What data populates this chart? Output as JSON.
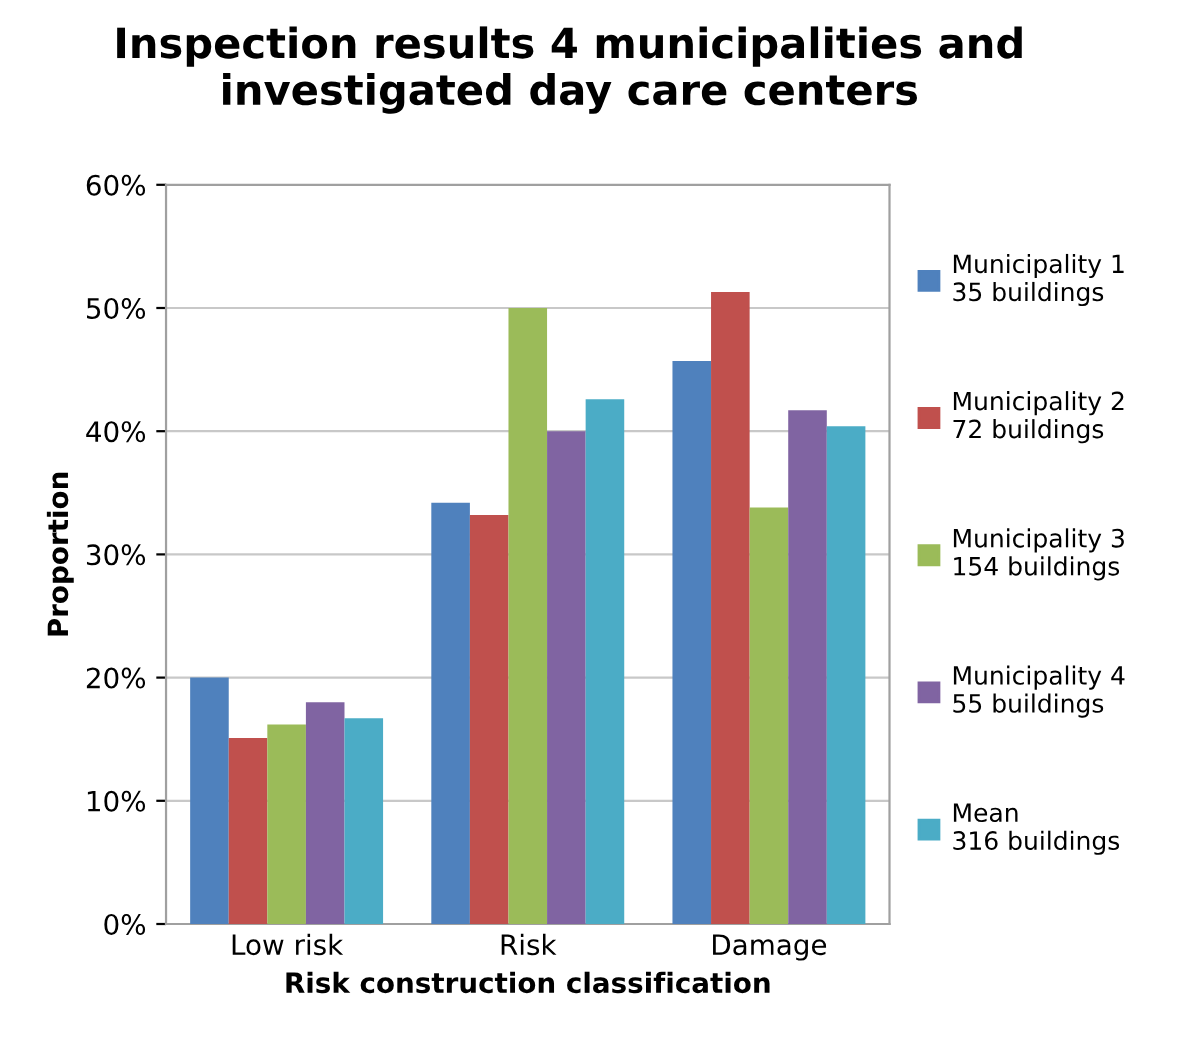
{
  "chart_data": {
    "type": "bar",
    "title": "Inspection results 4 municipalities and investigated day care centers",
    "xlabel": "Risk construction classification",
    "ylabel": "Proportion",
    "categories": [
      "Low risk",
      "Risk",
      "Damage"
    ],
    "series": [
      {
        "name": "Municipality 1\n35 buildings",
        "color": "#4f81bd",
        "values": [
          0.2,
          0.342,
          0.457
        ]
      },
      {
        "name": "Municipality 2\n72 buildings",
        "color": "#c0504d",
        "values": [
          0.151,
          0.332,
          0.513
        ]
      },
      {
        "name": "Municipality 3\n154 buildings",
        "color": "#9bbb59",
        "values": [
          0.162,
          0.5,
          0.338
        ]
      },
      {
        "name": "Municipality 4\n55 buildings",
        "color": "#8064a2",
        "values": [
          0.18,
          0.4,
          0.417
        ]
      },
      {
        "name": "Mean\n316 buildings",
        "color": "#4bacc6",
        "values": [
          0.167,
          0.426,
          0.404
        ]
      }
    ],
    "ylim": [
      0,
      0.6
    ],
    "yticks": [
      {
        "value": 0,
        "label": "0%"
      },
      {
        "value": 0.1,
        "label": "10%"
      },
      {
        "value": 0.2,
        "label": "20%"
      },
      {
        "value": 0.3,
        "label": "30%"
      },
      {
        "value": 0.4,
        "label": "40%"
      },
      {
        "value": 0.5,
        "label": "50%"
      },
      {
        "value": 0.6,
        "label": "60%"
      }
    ],
    "grid": "y",
    "legend": "right"
  }
}
